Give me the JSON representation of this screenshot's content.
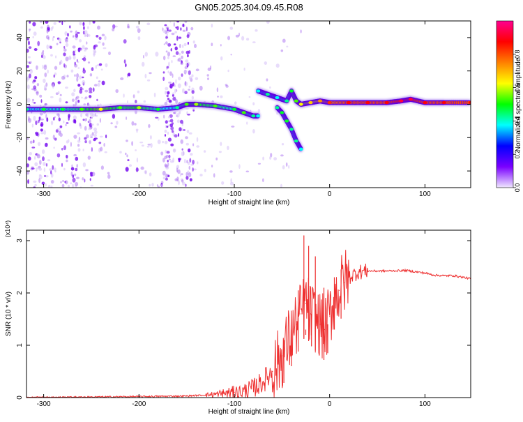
{
  "title": "GN05.2025.304.09.45.R08",
  "chart_data": [
    {
      "type": "heatmap",
      "xlabel": "Height of straight line (km)",
      "ylabel": "Frequency (Hz)",
      "xlim": [
        -318,
        148
      ],
      "ylim": [
        -50,
        50
      ],
      "xticks": [
        -300,
        -200,
        -100,
        0,
        100
      ],
      "yticks": [
        -40,
        -20,
        0,
        20,
        40
      ],
      "colorbar": {
        "label": "Normalized spectral amplitude",
        "range": [
          0,
          1
        ],
        "ticks": [
          0.0,
          0.2,
          0.4,
          0.6,
          0.8
        ],
        "colormap": [
          "#f0e8ff",
          "#7a00ff",
          "#0000ff",
          "#00ffff",
          "#00ff00",
          "#ffff00",
          "#ff8000",
          "#ff0000",
          "#ff0090"
        ]
      },
      "ridge": {
        "x": [
          -318,
          -300,
          -280,
          -260,
          -240,
          -220,
          -200,
          -180,
          -160,
          -150,
          -140,
          -120,
          -100,
          -90,
          -80,
          -75
        ],
        "y": [
          -3,
          -3,
          -3,
          -3,
          -3,
          -2,
          -2,
          -3,
          -2,
          0,
          0,
          -1,
          -3,
          -5,
          -7,
          -7
        ],
        "amplitude": [
          0.35,
          0.4,
          0.4,
          0.45,
          0.55,
          0.45,
          0.5,
          0.4,
          0.35,
          0.45,
          0.5,
          0.45,
          0.4,
          0.45,
          0.35,
          0.3
        ]
      },
      "ridge_upper": {
        "x": [
          -75,
          -65,
          -55,
          -45,
          -40,
          -35,
          -30,
          -20,
          -10,
          0,
          20,
          40,
          60,
          75,
          85,
          100,
          120,
          148
        ],
        "y": [
          8,
          6,
          4,
          2,
          8,
          2,
          0,
          1,
          2,
          1,
          1,
          1,
          1,
          2,
          3,
          1,
          1,
          1
        ],
        "amplitude": [
          0.3,
          0.35,
          0.3,
          0.35,
          0.4,
          0.45,
          0.55,
          0.6,
          0.65,
          0.75,
          0.8,
          0.8,
          0.8,
          0.85,
          0.85,
          0.8,
          0.8,
          0.8
        ]
      },
      "ridge_lower": {
        "x": [
          -55,
          -50,
          -45,
          -40,
          -35,
          -30
        ],
        "y": [
          -2,
          -5,
          -10,
          -15,
          -22,
          -27
        ],
        "amplitude": [
          0.35,
          0.4,
          0.4,
          0.35,
          0.35,
          0.3
        ]
      }
    },
    {
      "type": "line",
      "xlabel": "Height of straight line (km)",
      "ylabel": "SNR (10 * v/v)",
      "y_multiplier": "(x10⁴)",
      "xlim": [
        -318,
        148
      ],
      "ylim": [
        0,
        3.2
      ],
      "xticks": [
        -300,
        -200,
        -100,
        0,
        100
      ],
      "yticks": [
        0,
        1,
        2,
        3
      ],
      "color": "#ee3030",
      "x": [
        -318,
        -200,
        -150,
        -120,
        -100,
        -90,
        -80,
        -70,
        -60,
        -50,
        -40,
        -35,
        -30,
        -25,
        -20,
        -15,
        -10,
        -5,
        0,
        5,
        10,
        15,
        20,
        30,
        40,
        60,
        80,
        100,
        110,
        120,
        130,
        140,
        148
      ],
      "y": [
        0.0,
        0.02,
        0.03,
        0.06,
        0.1,
        0.12,
        0.18,
        0.3,
        0.5,
        0.8,
        1.2,
        1.4,
        1.6,
        1.8,
        1.6,
        1.5,
        1.4,
        1.3,
        1.55,
        1.9,
        2.05,
        2.2,
        2.3,
        2.4,
        2.42,
        2.42,
        2.43,
        2.38,
        2.34,
        2.33,
        2.33,
        2.3,
        2.27
      ],
      "spikes": {
        "x": [
          -48,
          -40,
          -33,
          -27,
          -25,
          -22,
          -19,
          -15,
          -11,
          -6,
          -2,
          5,
          12
        ],
        "y": [
          1.1,
          1.3,
          2.05,
          3.1,
          1.3,
          2.9,
          1.6,
          2.7,
          1.3,
          2.1,
          1.4,
          2.3,
          2.45
        ]
      }
    }
  ]
}
